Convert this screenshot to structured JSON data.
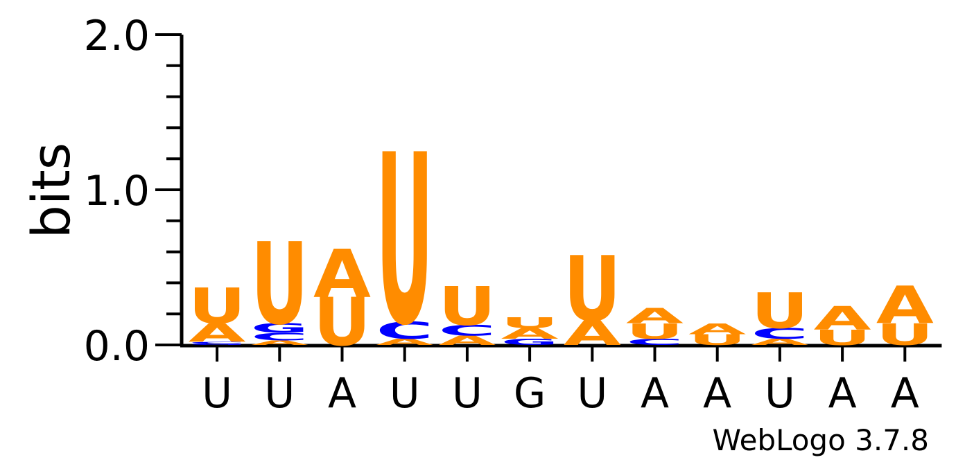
{
  "chart_data": {
    "type": "sequence-logo",
    "ylabel": "bits",
    "ylim": [
      0,
      2
    ],
    "yticks": [
      "0.0",
      "1.0",
      "2.0"
    ],
    "xtick_labels": [
      "U",
      "U",
      "A",
      "U",
      "U",
      "G",
      "U",
      "A",
      "A",
      "U",
      "A",
      "A"
    ],
    "colors": {
      "A": "#ff8c00",
      "U": "#ff8c00",
      "C": "#0000ff",
      "G": "#0000ff"
    },
    "columns": [
      [
        {
          "l": "G",
          "h": 0.01
        },
        {
          "l": "C",
          "h": 0.01
        },
        {
          "l": "A",
          "h": 0.12
        },
        {
          "l": "U",
          "h": 0.23
        }
      ],
      [
        {
          "l": "A",
          "h": 0.03
        },
        {
          "l": "C",
          "h": 0.05
        },
        {
          "l": "G",
          "h": 0.06
        },
        {
          "l": "U",
          "h": 0.53
        }
      ],
      [
        {
          "l": "U",
          "h": 0.31
        },
        {
          "l": "A",
          "h": 0.31
        }
      ],
      [
        {
          "l": "A",
          "h": 0.04
        },
        {
          "l": "C",
          "h": 0.11
        },
        {
          "l": "U",
          "h": 1.1
        }
      ],
      [
        {
          "l": "A",
          "h": 0.06
        },
        {
          "l": "C",
          "h": 0.07
        },
        {
          "l": "U",
          "h": 0.25
        }
      ],
      [
        {
          "l": "G",
          "h": 0.04
        },
        {
          "l": "A",
          "h": 0.07
        },
        {
          "l": "U",
          "h": 0.07
        }
      ],
      [
        {
          "l": "A",
          "h": 0.16
        },
        {
          "l": "U",
          "h": 0.42
        }
      ],
      [
        {
          "l": "C",
          "h": 0.04
        },
        {
          "l": "U",
          "h": 0.1
        },
        {
          "l": "A",
          "h": 0.1
        }
      ],
      [
        {
          "l": "U",
          "h": 0.07
        },
        {
          "l": "A",
          "h": 0.07
        }
      ],
      [
        {
          "l": "A",
          "h": 0.04
        },
        {
          "l": "C",
          "h": 0.07
        },
        {
          "l": "U",
          "h": 0.23
        }
      ],
      [
        {
          "l": "U",
          "h": 0.1
        },
        {
          "l": "A",
          "h": 0.15
        }
      ],
      [
        {
          "l": "U",
          "h": 0.14
        },
        {
          "l": "A",
          "h": 0.24
        }
      ]
    ]
  },
  "footer": {
    "credit": "WebLogo 3.7.8"
  }
}
